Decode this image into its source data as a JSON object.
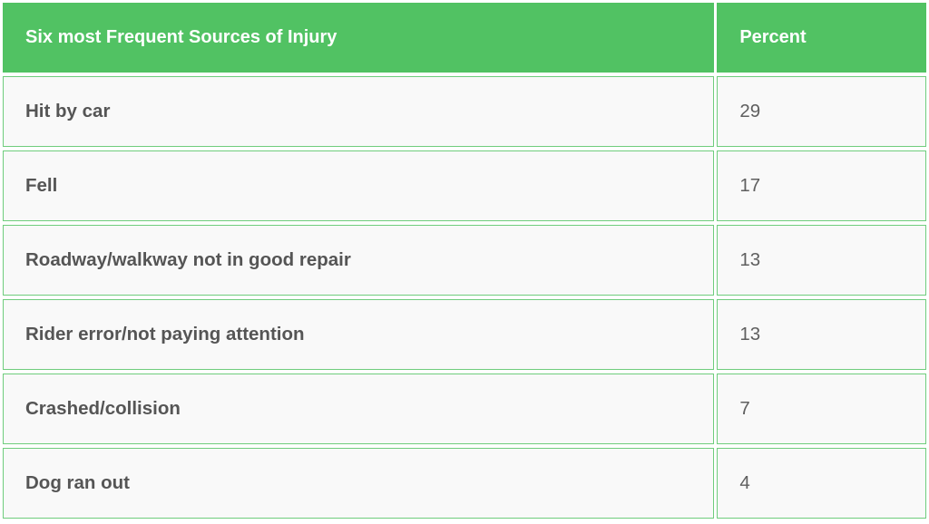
{
  "colors": {
    "header_bg": "#51c263",
    "header_text": "#ffffff",
    "cell_bg": "#f9f9f9",
    "cell_border": "#6fcd7d",
    "cell_text": "#555555"
  },
  "chart_data": {
    "type": "table",
    "columns": [
      "Six most Frequent Sources of Injury",
      "Percent"
    ],
    "rows": [
      [
        "Hit by car",
        "29"
      ],
      [
        "Fell",
        "17"
      ],
      [
        "Roadway/walkway not in good repair",
        "13"
      ],
      [
        "Rider error/not paying attention",
        "13"
      ],
      [
        "Crashed/collision",
        "7"
      ],
      [
        "Dog ran out",
        "4"
      ]
    ]
  }
}
